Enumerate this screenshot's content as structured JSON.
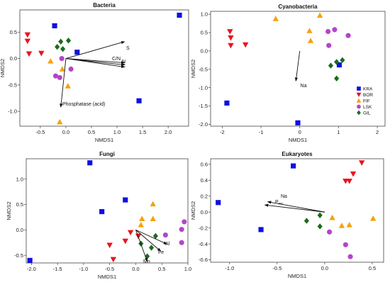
{
  "colors": {
    "KRA": "#1010e0",
    "BOR": "#e8141c",
    "FIF": "#f5a20e",
    "LSK": "#b245c8",
    "GIL": "#1d6b1d"
  },
  "legend": {
    "entries": [
      "KRA",
      "BOR",
      "FIF",
      "LSK",
      "GIL"
    ],
    "placement": "bottom-right of Cyanobacteria panel"
  },
  "chart_data": [
    {
      "id": "bacteria",
      "type": "scatter",
      "title": "Bacteria",
      "xlabel": "NMDS1",
      "ylabel": "NMDS2",
      "xlim": [
        -0.9,
        2.4
      ],
      "ylim": [
        -1.28,
        0.92
      ],
      "xticks": [
        -0.5,
        0.0,
        0.5,
        1.0,
        1.5,
        2.0
      ],
      "xtick_labels": [
        "-0.5",
        "0.0",
        "0.5",
        "1.0",
        "1.5",
        "2.0"
      ],
      "yticks": [
        -1.0,
        -0.5,
        0.0,
        0.5
      ],
      "ytick_labels": [
        "-1.0",
        "-0.5",
        "0.0",
        "0.5"
      ],
      "series": [
        {
          "name": "KRA",
          "marker": "square",
          "points": [
            [
              -0.22,
              0.62
            ],
            [
              0.22,
              0.12
            ],
            [
              2.22,
              0.82
            ],
            [
              1.43,
              -0.8
            ]
          ]
        },
        {
          "name": "BOR",
          "marker": "triangle-down",
          "points": [
            [
              -0.75,
              0.45
            ],
            [
              -0.75,
              0.33
            ],
            [
              -0.72,
              0.09
            ],
            [
              -0.48,
              0.1
            ]
          ]
        },
        {
          "name": "FIF",
          "marker": "triangle-up",
          "points": [
            [
              -0.3,
              -0.05
            ],
            [
              -0.07,
              -0.2
            ],
            [
              0.04,
              -0.52
            ],
            [
              -0.12,
              -1.2
            ]
          ]
        },
        {
          "name": "LSK",
          "marker": "circle",
          "points": [
            [
              -0.08,
              0.0
            ],
            [
              -0.2,
              -0.33
            ],
            [
              -0.12,
              -0.36
            ],
            [
              0.1,
              -0.2
            ]
          ]
        },
        {
          "name": "GIL",
          "marker": "diamond",
          "points": [
            [
              -0.1,
              0.32
            ],
            [
              -0.17,
              0.22
            ],
            [
              -0.06,
              0.18
            ],
            [
              0.05,
              0.34
            ]
          ]
        }
      ],
      "vectors": [
        {
          "label": "S",
          "x": 1.15,
          "y": 0.32
        },
        {
          "label": "C/N",
          "x": 1.15,
          "y": -0.08
        },
        {
          "label": "N",
          "x": 1.15,
          "y": -0.12
        },
        {
          "label": "C",
          "x": 1.15,
          "y": -0.16
        },
        {
          "label": "Phosphatase (acid)",
          "x": -0.1,
          "y": -0.92
        }
      ]
    },
    {
      "id": "cyanobacteria",
      "type": "scatter",
      "title": "Cyanobacteria",
      "xlabel": "NMDS1",
      "ylabel": "NMDS2",
      "xlim": [
        -2.3,
        2.2
      ],
      "ylim": [
        -2.05,
        1.08
      ],
      "xticks": [
        -2,
        -1,
        0,
        1,
        2
      ],
      "xtick_labels": [
        "-2",
        "-1",
        "0",
        "1",
        "2"
      ],
      "yticks": [
        -2.0,
        -1.5,
        -1.0,
        -0.5,
        0.0,
        0.5,
        1.0
      ],
      "ytick_labels": [
        "-2.0",
        "-1.5",
        "-1.0",
        "-0.5",
        "0.0",
        "0.5",
        "1.0"
      ],
      "series": [
        {
          "name": "KRA",
          "marker": "square",
          "points": [
            [
              -1.88,
              -1.42
            ],
            [
              -0.05,
              -1.96
            ],
            [
              1.02,
              -0.38
            ]
          ]
        },
        {
          "name": "BOR",
          "marker": "triangle-down",
          "points": [
            [
              -1.8,
              0.53
            ],
            [
              -1.78,
              0.36
            ],
            [
              -1.78,
              0.15
            ],
            [
              -1.4,
              0.17
            ]
          ]
        },
        {
          "name": "FIF",
          "marker": "triangle-up",
          "points": [
            [
              -0.62,
              0.88
            ],
            [
              0.25,
              0.55
            ],
            [
              0.28,
              0.28
            ],
            [
              0.52,
              0.97
            ]
          ]
        },
        {
          "name": "LSK",
          "marker": "circle",
          "points": [
            [
              0.73,
              0.53
            ],
            [
              0.9,
              0.58
            ],
            [
              1.25,
              0.42
            ],
            [
              0.75,
              0.15
            ]
          ]
        },
        {
          "name": "GIL",
          "marker": "diamond",
          "points": [
            [
              0.8,
              -0.4
            ],
            [
              0.95,
              -0.3
            ],
            [
              1.1,
              -0.25
            ],
            [
              0.95,
              -0.75
            ]
          ]
        }
      ],
      "vectors": [
        {
          "label": "Na",
          "x": -0.1,
          "y": -0.82
        }
      ]
    },
    {
      "id": "fungi",
      "type": "scatter",
      "title": "Fungi",
      "xlabel": "NMDS1",
      "ylabel": "NMDS2",
      "xlim": [
        -2.1,
        1.0
      ],
      "ylim": [
        -0.65,
        1.4
      ],
      "xticks": [
        -2.0,
        -1.5,
        -1.0,
        -0.5,
        0.0,
        0.5,
        1.0
      ],
      "xtick_labels": [
        "-2.0",
        "-1.5",
        "-1.0",
        "-0.5",
        "0.0",
        "0.5",
        "1.0"
      ],
      "yticks": [
        -0.5,
        0.0,
        0.5,
        1.0
      ],
      "ytick_labels": [
        "-0.5",
        "0.0",
        "0.5",
        "1.0"
      ],
      "series": [
        {
          "name": "KRA",
          "marker": "square",
          "points": [
            [
              -0.88,
              1.32
            ],
            [
              -0.65,
              0.36
            ],
            [
              -0.2,
              0.59
            ],
            [
              -2.03,
              -0.6
            ]
          ]
        },
        {
          "name": "BOR",
          "marker": "triangle-down",
          "points": [
            [
              -0.1,
              -0.05
            ],
            [
              0.05,
              -0.12
            ],
            [
              -0.2,
              -0.22
            ],
            [
              -0.5,
              -0.3
            ],
            [
              -0.43,
              -0.58
            ]
          ]
        },
        {
          "name": "FIF",
          "marker": "triangle-up",
          "points": [
            [
              0.33,
              0.51
            ],
            [
              0.12,
              0.22
            ],
            [
              0.33,
              0.22
            ],
            [
              0.1,
              0.1
            ]
          ]
        },
        {
          "name": "LSK",
          "marker": "circle",
          "points": [
            [
              0.93,
              0.16
            ],
            [
              0.88,
              0.01
            ],
            [
              0.57,
              -0.1
            ],
            [
              0.88,
              -0.25
            ]
          ]
        },
        {
          "name": "GIL",
          "marker": "diamond",
          "points": [
            [
              0.38,
              -0.12
            ],
            [
              0.1,
              -0.27
            ],
            [
              0.3,
              -0.35
            ],
            [
              0.22,
              -0.52
            ]
          ]
        }
      ],
      "vectors": [
        {
          "label": "Al",
          "x": 0.6,
          "y": -0.28
        },
        {
          "label": "Fe",
          "x": 0.48,
          "y": -0.42
        },
        {
          "label": "Mn",
          "x": 0.22,
          "y": -0.62
        }
      ]
    },
    {
      "id": "eukaryotes",
      "type": "scatter",
      "title": "Eukaryotes",
      "xlabel": "NMDS1",
      "ylabel": "NMDS2",
      "xlim": [
        -1.2,
        0.62
      ],
      "ylim": [
        -0.63,
        0.67
      ],
      "xticks": [
        -1.0,
        -0.5,
        0.0,
        0.5
      ],
      "xtick_labels": [
        "-1.0",
        "-0.5",
        "0.0",
        "0.5"
      ],
      "yticks": [
        -0.6,
        -0.4,
        -0.2,
        0.0,
        0.2,
        0.4,
        0.6
      ],
      "ytick_labels": [
        "-0.6",
        "-0.4",
        "-0.2",
        "0.0",
        "0.2",
        "0.4",
        "0.6"
      ],
      "series": [
        {
          "name": "KRA",
          "marker": "square",
          "points": [
            [
              -1.12,
              0.12
            ],
            [
              -0.33,
              0.58
            ],
            [
              -0.67,
              -0.22
            ]
          ]
        },
        {
          "name": "BOR",
          "marker": "triangle-down",
          "points": [
            [
              0.39,
              0.62
            ],
            [
              0.3,
              0.48
            ],
            [
              0.22,
              0.39
            ],
            [
              0.26,
              0.39
            ]
          ]
        },
        {
          "name": "FIF",
          "marker": "triangle-up",
          "points": [
            [
              0.08,
              -0.07
            ],
            [
              0.18,
              -0.17
            ],
            [
              0.26,
              -0.16
            ],
            [
              0.51,
              -0.08
            ]
          ]
        },
        {
          "name": "LSK",
          "marker": "circle",
          "points": [
            [
              0.05,
              -0.25
            ],
            [
              0.22,
              -0.41
            ],
            [
              0.27,
              -0.56
            ]
          ]
        },
        {
          "name": "GIL",
          "marker": "diamond",
          "points": [
            [
              -0.05,
              -0.04
            ],
            [
              -0.19,
              -0.11
            ],
            [
              -0.05,
              -0.18
            ]
          ]
        }
      ],
      "vectors": [
        {
          "label": "Na",
          "x": -0.6,
          "y": 0.13
        },
        {
          "label": "P_mic",
          "x": -0.63,
          "y": 0.09
        }
      ]
    }
  ]
}
